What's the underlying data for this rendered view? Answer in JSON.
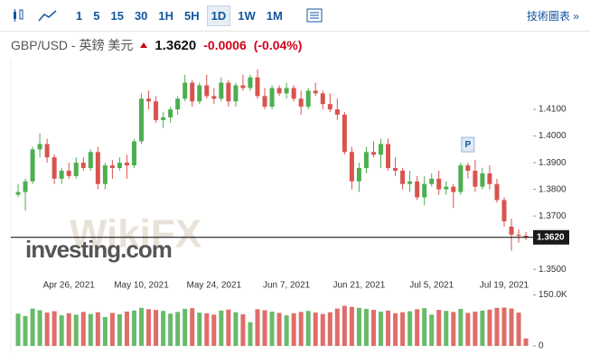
{
  "toolbar": {
    "intervals": [
      "1",
      "5",
      "15",
      "30",
      "1H",
      "5H",
      "1D",
      "1W",
      "1M"
    ],
    "active": "1D",
    "link": "技術圖表 »"
  },
  "chart_data": {
    "type": "candlestick",
    "title": "GBP/USD - 英鎊 美元",
    "last_price": {
      "value": 1.362,
      "label": "1.3620"
    },
    "change": "-0.0006",
    "change_percent": "(-0.04%)",
    "watermark": "investing.com",
    "watermark2": "WikiFX",
    "marker": "P",
    "up_color": "#4caf50",
    "down_color": "#d9534f",
    "categories": [
      null,
      null,
      null,
      null,
      null,
      null,
      null,
      "Apr 26, 2021",
      null,
      null,
      null,
      null,
      null,
      null,
      null,
      null,
      null,
      "May 10, 2021",
      null,
      null,
      null,
      null,
      null,
      null,
      null,
      null,
      null,
      "May 24, 2021",
      null,
      null,
      null,
      null,
      null,
      null,
      null,
      null,
      null,
      "Jun 7, 2021",
      null,
      null,
      null,
      null,
      null,
      null,
      null,
      null,
      null,
      "Jun 21, 2021",
      null,
      null,
      null,
      null,
      null,
      null,
      null,
      null,
      null,
      "Jul 5, 2021",
      null,
      null,
      null,
      null,
      null,
      null,
      null,
      null,
      null,
      "Jul 19, 2021",
      null,
      null,
      null
    ],
    "open": [
      1.378,
      1.379,
      1.383,
      1.395,
      1.397,
      1.392,
      1.384,
      1.387,
      1.385,
      1.39,
      1.388,
      1.394,
      1.382,
      1.389,
      1.388,
      1.39,
      1.389,
      1.398,
      1.414,
      1.413,
      1.406,
      1.407,
      1.41,
      1.414,
      1.42,
      1.413,
      1.419,
      1.415,
      1.414,
      1.42,
      1.413,
      1.419,
      1.418,
      1.422,
      1.415,
      1.411,
      1.418,
      1.416,
      1.418,
      1.414,
      1.411,
      1.417,
      1.416,
      1.412,
      1.41,
      1.408,
      1.394,
      1.383,
      1.388,
      1.394,
      1.393,
      1.397,
      1.388,
      1.387,
      1.382,
      1.383,
      1.377,
      1.382,
      1.384,
      1.38,
      1.381,
      1.379,
      1.389,
      1.387,
      1.381,
      1.386,
      1.382,
      1.376,
      1.366,
      1.363,
      1.3626
    ],
    "high": [
      1.382,
      1.384,
      1.396,
      1.401,
      1.399,
      1.393,
      1.388,
      1.39,
      1.392,
      1.392,
      1.395,
      1.396,
      1.39,
      1.391,
      1.392,
      1.393,
      1.399,
      1.416,
      1.417,
      1.415,
      1.409,
      1.411,
      1.415,
      1.423,
      1.421,
      1.42,
      1.423,
      1.418,
      1.422,
      1.421,
      1.42,
      1.423,
      1.423,
      1.425,
      1.418,
      1.419,
      1.419,
      1.42,
      1.419,
      1.417,
      1.418,
      1.42,
      1.417,
      1.416,
      1.414,
      1.409,
      1.396,
      1.39,
      1.396,
      1.398,
      1.399,
      1.399,
      1.392,
      1.388,
      1.387,
      1.385,
      1.385,
      1.386,
      1.387,
      1.383,
      1.382,
      1.39,
      1.39,
      1.391,
      1.388,
      1.389,
      1.384,
      1.377,
      1.369,
      1.365,
      1.364
    ],
    "low": [
      1.377,
      1.372,
      1.382,
      1.392,
      1.39,
      1.382,
      1.382,
      1.384,
      1.384,
      1.387,
      1.387,
      1.38,
      1.38,
      1.384,
      1.387,
      1.384,
      1.388,
      1.397,
      1.41,
      1.405,
      1.403,
      1.405,
      1.408,
      1.413,
      1.411,
      1.412,
      1.414,
      1.412,
      1.413,
      1.411,
      1.411,
      1.417,
      1.417,
      1.414,
      1.41,
      1.41,
      1.415,
      1.414,
      1.413,
      1.408,
      1.41,
      1.415,
      1.41,
      1.409,
      1.406,
      1.393,
      1.38,
      1.379,
      1.386,
      1.392,
      1.388,
      1.387,
      1.385,
      1.38,
      1.379,
      1.376,
      1.374,
      1.381,
      1.378,
      1.378,
      1.373,
      1.378,
      1.384,
      1.379,
      1.38,
      1.38,
      1.375,
      1.366,
      1.357,
      1.36,
      1.361
    ],
    "close": [
      1.379,
      1.383,
      1.395,
      1.397,
      1.392,
      1.384,
      1.387,
      1.385,
      1.39,
      1.388,
      1.394,
      1.382,
      1.389,
      1.388,
      1.39,
      1.389,
      1.398,
      1.414,
      1.413,
      1.406,
      1.407,
      1.41,
      1.414,
      1.42,
      1.413,
      1.419,
      1.415,
      1.414,
      1.42,
      1.413,
      1.419,
      1.418,
      1.422,
      1.415,
      1.411,
      1.418,
      1.416,
      1.418,
      1.414,
      1.411,
      1.417,
      1.416,
      1.412,
      1.41,
      1.408,
      1.394,
      1.383,
      1.388,
      1.394,
      1.393,
      1.397,
      1.388,
      1.387,
      1.382,
      1.383,
      1.377,
      1.382,
      1.384,
      1.38,
      1.381,
      1.379,
      1.389,
      1.387,
      1.381,
      1.386,
      1.382,
      1.376,
      1.368,
      1.363,
      1.3626,
      1.362
    ],
    "volume": [
      95000,
      88000,
      110000,
      105000,
      98000,
      102000,
      90000,
      96000,
      92000,
      100000,
      94000,
      99000,
      85000,
      97000,
      93000,
      101000,
      104000,
      112000,
      108000,
      106000,
      103000,
      95000,
      100000,
      109000,
      111000,
      98000,
      96000,
      92000,
      104000,
      107000,
      99000,
      93000,
      70000,
      108000,
      105000,
      101000,
      97000,
      90000,
      96000,
      100000,
      103000,
      98000,
      94000,
      99000,
      110000,
      118000,
      115000,
      112000,
      109000,
      106000,
      101000,
      104000,
      96000,
      99000,
      102000,
      108000,
      111000,
      92000,
      106000,
      103000,
      100000,
      109000,
      97000,
      101000,
      104000,
      107000,
      112000,
      113000,
      110000,
      98000,
      22000
    ],
    "ylim": [
      1.346,
      1.429
    ],
    "yticks": [
      {
        "value": 1.35,
        "label": "1.3500"
      },
      {
        "value": 1.37,
        "label": "1.3700"
      },
      {
        "value": 1.38,
        "label": "1.3800"
      },
      {
        "value": 1.39,
        "label": "1.3900"
      },
      {
        "value": 1.4,
        "label": "1.4000"
      },
      {
        "value": 1.41,
        "label": "1.4100"
      }
    ],
    "volume_ylim": [
      0,
      170000
    ],
    "volume_ticks": [
      0,
      {
        "value": 150000,
        "label": "150.0K"
      }
    ],
    "grid": false
  }
}
